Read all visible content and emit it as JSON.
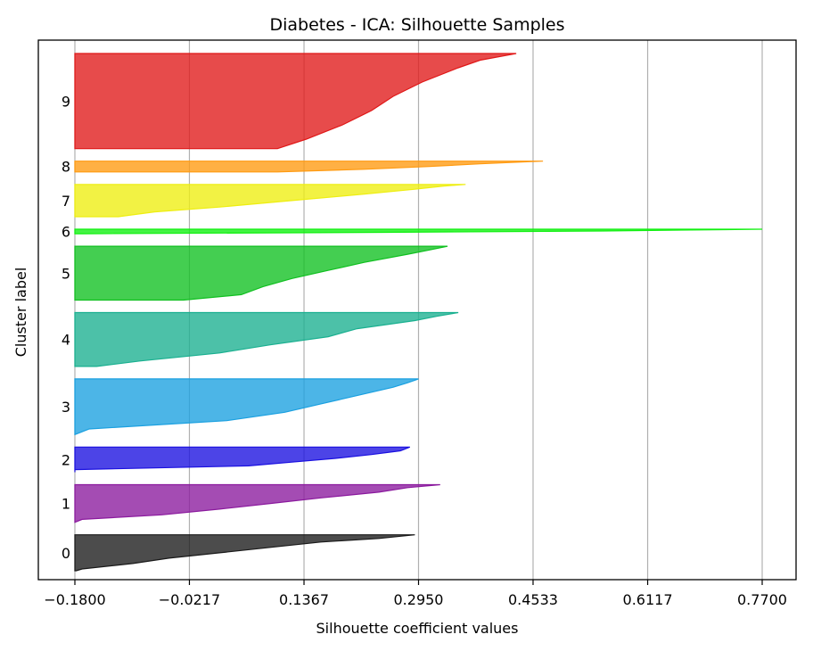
{
  "chart_data": {
    "type": "area",
    "title": "Diabetes - ICA: Silhouette Samples",
    "xlabel": "Silhouette coefficient values",
    "ylabel": "Cluster label",
    "xlim": [
      -0.18,
      0.77
    ],
    "x_ticks": [
      "-0.1800",
      "-0.0217",
      "0.1367",
      "0.2950",
      "0.4533",
      "0.6117",
      "0.7700"
    ],
    "x_tick_values": [
      -0.18,
      -0.0217,
      0.1367,
      0.295,
      0.4533,
      0.6117,
      0.77
    ],
    "grid": "vertical",
    "clusters": [
      {
        "label": "0",
        "color": "#1a1a1a",
        "size": 40,
        "profile": [
          [
            0,
            -0.178
          ],
          [
            0.05,
            -0.17
          ],
          [
            0.2,
            -0.1
          ],
          [
            0.35,
            -0.05
          ],
          [
            0.5,
            0.02
          ],
          [
            0.65,
            0.09
          ],
          [
            0.8,
            0.16
          ],
          [
            0.9,
            0.24
          ],
          [
            1,
            0.29
          ]
        ]
      },
      {
        "label": "1",
        "color": "#8b1a9e",
        "size": 42,
        "profile": [
          [
            0,
            -0.18
          ],
          [
            0.08,
            -0.17
          ],
          [
            0.2,
            -0.06
          ],
          [
            0.35,
            0.02
          ],
          [
            0.5,
            0.09
          ],
          [
            0.65,
            0.16
          ],
          [
            0.8,
            0.24
          ],
          [
            0.92,
            0.28
          ],
          [
            1,
            0.325
          ]
        ]
      },
      {
        "label": "2",
        "color": "#1a10e0",
        "size": 28,
        "profile": [
          [
            0,
            -0.18
          ],
          [
            0.1,
            -0.18
          ],
          [
            0.25,
            0.06
          ],
          [
            0.4,
            0.12
          ],
          [
            0.55,
            0.18
          ],
          [
            0.7,
            0.23
          ],
          [
            0.85,
            0.27
          ],
          [
            1,
            0.283
          ]
        ]
      },
      {
        "label": "3",
        "color": "#1aa0e0",
        "size": 62,
        "profile": [
          [
            0,
            -0.18
          ],
          [
            0.1,
            -0.16
          ],
          [
            0.25,
            0.03
          ],
          [
            0.4,
            0.11
          ],
          [
            0.55,
            0.16
          ],
          [
            0.7,
            0.21
          ],
          [
            0.85,
            0.26
          ],
          [
            0.93,
            0.28
          ],
          [
            1,
            0.295
          ]
        ]
      },
      {
        "label": "4",
        "color": "#1ab090",
        "size": 60,
        "profile": [
          [
            0,
            -0.15
          ],
          [
            0.1,
            -0.09
          ],
          [
            0.25,
            0.02
          ],
          [
            0.4,
            0.09
          ],
          [
            0.55,
            0.17
          ],
          [
            0.7,
            0.21
          ],
          [
            0.85,
            0.29
          ],
          [
            0.93,
            0.32
          ],
          [
            1,
            0.35
          ]
        ]
      },
      {
        "label": "5",
        "color": "#10c020",
        "size": 60,
        "profile": [
          [
            0,
            -0.03
          ],
          [
            0.1,
            0.05
          ],
          [
            0.25,
            0.08
          ],
          [
            0.4,
            0.12
          ],
          [
            0.55,
            0.17
          ],
          [
            0.7,
            0.22
          ],
          [
            0.85,
            0.28
          ],
          [
            0.93,
            0.31
          ],
          [
            1,
            0.335
          ]
        ]
      },
      {
        "label": "6",
        "color": "#10f010",
        "size": 5,
        "profile": [
          [
            0,
            -0.17
          ],
          [
            0.3,
            0.25
          ],
          [
            0.6,
            0.55
          ],
          [
            0.9,
            0.72
          ],
          [
            1,
            0.77
          ]
        ]
      },
      {
        "label": "7",
        "color": "#eeee10",
        "size": 36,
        "profile": [
          [
            0,
            -0.12
          ],
          [
            0.15,
            -0.07
          ],
          [
            0.3,
            0.02
          ],
          [
            0.5,
            0.12
          ],
          [
            0.7,
            0.22
          ],
          [
            0.85,
            0.29
          ],
          [
            0.95,
            0.33
          ],
          [
            1,
            0.36
          ]
        ]
      },
      {
        "label": "8",
        "color": "#ff9a10",
        "size": 12,
        "profile": [
          [
            0,
            0.1
          ],
          [
            0.25,
            0.22
          ],
          [
            0.5,
            0.31
          ],
          [
            0.75,
            0.38
          ],
          [
            0.9,
            0.43
          ],
          [
            1,
            0.467
          ]
        ]
      },
      {
        "label": "9",
        "color": "#e01818",
        "size": 106,
        "profile": [
          [
            0,
            0.1
          ],
          [
            0.1,
            0.14
          ],
          [
            0.25,
            0.19
          ],
          [
            0.4,
            0.23
          ],
          [
            0.55,
            0.26
          ],
          [
            0.7,
            0.3
          ],
          [
            0.85,
            0.35
          ],
          [
            0.93,
            0.38
          ],
          [
            1,
            0.43
          ]
        ]
      }
    ]
  }
}
